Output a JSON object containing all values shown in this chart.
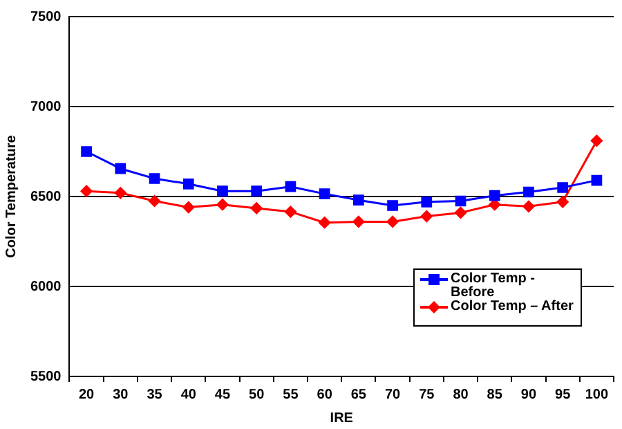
{
  "chart_data": {
    "type": "line",
    "xlabel": "IRE",
    "ylabel": "Color Temperature",
    "categories": [
      "20",
      "30",
      "35",
      "40",
      "45",
      "50",
      "55",
      "60",
      "65",
      "70",
      "75",
      "80",
      "85",
      "90",
      "95",
      "100"
    ],
    "series": [
      {
        "name": "Color Temp - Before",
        "color": "#0000ff",
        "marker": "square",
        "values": [
          6750,
          6655,
          6600,
          6570,
          6530,
          6530,
          6555,
          6515,
          6480,
          6450,
          6470,
          6475,
          6505,
          6525,
          6550,
          6590
        ]
      },
      {
        "name": "Color Temp – After",
        "color": "#ff0000",
        "marker": "diamond",
        "values": [
          6530,
          6520,
          6475,
          6440,
          6455,
          6435,
          6415,
          6355,
          6360,
          6360,
          6390,
          6410,
          6455,
          6445,
          6470,
          6810
        ]
      }
    ],
    "ylim": [
      5500,
      7500
    ],
    "yticks": [
      5500,
      6000,
      6500,
      7000,
      7500
    ],
    "grid": "y",
    "legend": "right"
  }
}
